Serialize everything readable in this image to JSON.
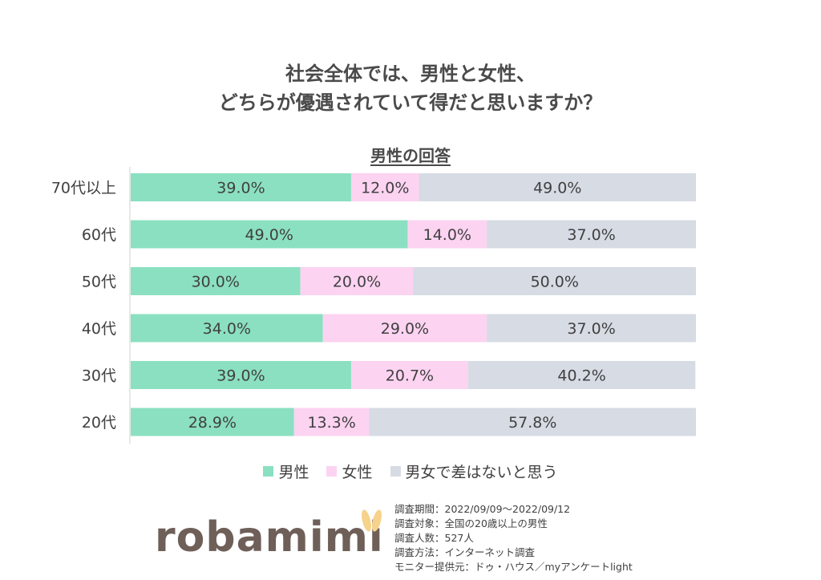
{
  "title": {
    "line1": "社会全体では、男性と女性、",
    "line2": "どちらが優遇されていて得だと思いますか？"
  },
  "subtitle": "男性の回答",
  "colors": {
    "male": "#8be0c1",
    "female": "#fcd3f1",
    "equal": "#d6dbe4",
    "axis": "#d0d0d0",
    "text": "#404040"
  },
  "chart_data": {
    "type": "bar",
    "orientation": "horizontal-stacked-100",
    "categories": [
      "70代以上",
      "60代",
      "50代",
      "40代",
      "30代",
      "20代"
    ],
    "series": [
      {
        "name": "男性",
        "values": [
          39.0,
          49.0,
          30.0,
          34.0,
          39.0,
          28.9
        ]
      },
      {
        "name": "女性",
        "values": [
          12.0,
          14.0,
          20.0,
          29.0,
          20.7,
          13.3
        ]
      },
      {
        "name": "男女で差はないと思う",
        "values": [
          49.0,
          37.0,
          50.0,
          37.0,
          40.2,
          57.8
        ]
      }
    ],
    "value_format": "percent-1-decimal",
    "xlim": [
      0,
      100
    ],
    "grid": false,
    "legend_position": "bottom"
  },
  "legend": {
    "male": "男性",
    "female": "女性",
    "equal": "男女で差はないと思う"
  },
  "logo_text": "robamimi",
  "survey_info": [
    "調査期間：2022/09/09～2022/09/12",
    "調査対象：全国の20歳以上の男性",
    "調査人数：527人",
    "調査方法：インターネット調査",
    "モニター提供元：ドゥ・ハウス／myアンケートlight"
  ]
}
